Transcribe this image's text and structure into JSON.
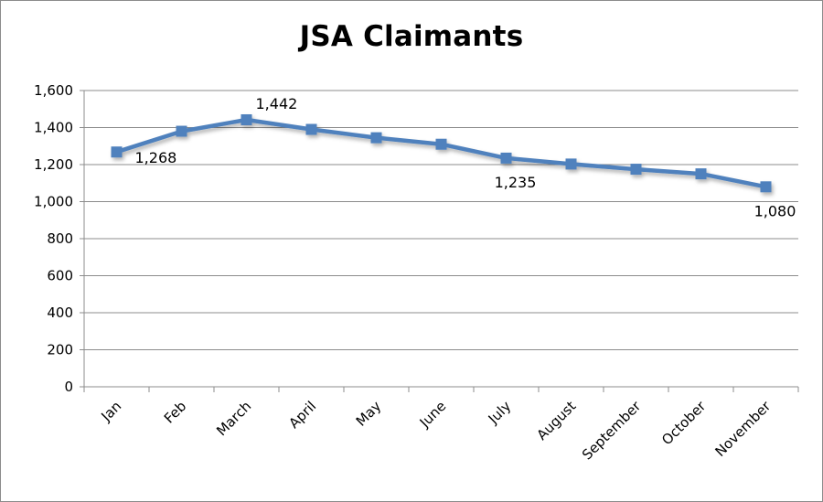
{
  "chart_data": {
    "type": "line",
    "title": "JSA Claimants",
    "xlabel": "",
    "ylabel": "",
    "categories": [
      "Jan",
      "Feb",
      "March",
      "April",
      "May",
      "June",
      "July",
      "August",
      "September",
      "October",
      "November"
    ],
    "series": [
      {
        "values": [
          1268,
          1380,
          1442,
          1390,
          1345,
          1310,
          1235,
          1203,
          1175,
          1150,
          1080
        ],
        "color": "#4f81bd"
      }
    ],
    "ylim": [
      0,
      1600
    ],
    "yticks": [
      "0",
      "200",
      "400",
      "600",
      "800",
      "1,000",
      "1,200",
      "1,400",
      "1,600"
    ],
    "data_labels": [
      {
        "index": 0,
        "text": "1,268",
        "placement": "below-right"
      },
      {
        "index": 2,
        "text": "1,442",
        "placement": "above-right"
      },
      {
        "index": 6,
        "text": "1,235",
        "placement": "below"
      },
      {
        "index": 10,
        "text": "1,080",
        "placement": "below"
      }
    ],
    "grid": true,
    "legend": "none"
  }
}
